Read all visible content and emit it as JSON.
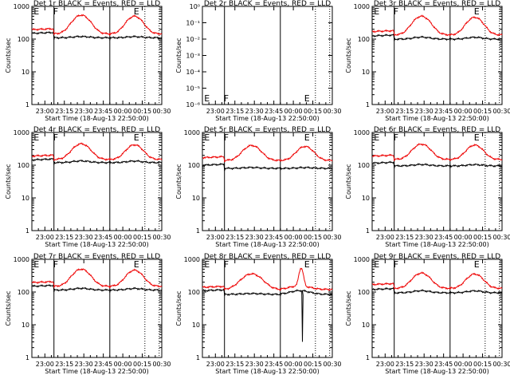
{
  "chart_data": [
    {
      "type": "line",
      "detector": "1r",
      "title": "Det 1r BLACK = Events, RED = LLD",
      "xlabel": "Start Time (18-Aug-13 22:50:00)",
      "ylabel": "Counts/sec",
      "xticks": [
        "23:00",
        "23:15",
        "23:30",
        "23:45",
        "00:00",
        "00:15",
        "00:30"
      ],
      "yticks": [
        "1",
        "10",
        "100",
        "1000"
      ],
      "ylim_log10": [
        0,
        3
      ],
      "markers": [
        {
          "label": "E",
          "x_min": 2
        },
        {
          "label": "F",
          "x_min": 17
        },
        {
          "label": "E",
          "x_min": 79
        }
      ],
      "series": [
        {
          "name": "Events",
          "color": "#000000",
          "profile": "standard",
          "base": 150,
          "low": 110,
          "peak": 120
        },
        {
          "name": "LLD",
          "color": "#ee0000",
          "profile": "standard",
          "base": 195,
          "low": 145,
          "peak": 540
        }
      ]
    },
    {
      "type": "line",
      "detector": "2r",
      "title": "Det 2r BLACK = Events, RED = LLD",
      "xlabel": "Start Time (18-Aug-13 22:50:00)",
      "ylabel": "Counts/sec",
      "xticks": [
        "23:00",
        "23:15",
        "23:30",
        "23:45",
        "00:00",
        "00:15",
        "00:30"
      ],
      "yticks": [
        "10⁻⁶",
        "10⁻⁵",
        "10⁻⁴",
        "10⁻³",
        "10⁻²",
        "10⁻¹",
        "10⁰"
      ],
      "ylim_log10": [
        -6,
        0
      ],
      "markers": [
        {
          "label": "E",
          "x_min": 2
        },
        {
          "label": "F",
          "x_min": 17
        },
        {
          "label": "E",
          "x_min": 79
        }
      ],
      "series": []
    },
    {
      "type": "line",
      "detector": "3r",
      "title": "Det 3r BLACK = Events, RED = LLD",
      "xlabel": "Start Time (18-Aug-13 22:50:00)",
      "ylabel": "Counts/sec",
      "xticks": [
        "23:00",
        "23:15",
        "23:30",
        "23:45",
        "00:00",
        "00:15",
        "00:30"
      ],
      "yticks": [
        "1",
        "10",
        "100",
        "1000"
      ],
      "ylim_log10": [
        0,
        3
      ],
      "markers": [
        {
          "label": "E",
          "x_min": 2
        },
        {
          "label": "F",
          "x_min": 17
        },
        {
          "label": "E",
          "x_min": 79
        }
      ],
      "series": [
        {
          "name": "Events",
          "color": "#000000",
          "profile": "standard",
          "base": 125,
          "low": 100,
          "peak": 115
        },
        {
          "name": "LLD",
          "color": "#ee0000",
          "profile": "standard",
          "base": 170,
          "low": 135,
          "peak": 500
        }
      ]
    },
    {
      "type": "line",
      "detector": "4r",
      "title": "Det 4r BLACK = Events, RED = LLD",
      "xlabel": "Start Time (18-Aug-13 22:50:00)",
      "ylabel": "Counts/sec",
      "xticks": [
        "23:00",
        "23:15",
        "23:30",
        "23:45",
        "00:00",
        "00:15",
        "00:30"
      ],
      "yticks": [
        "1",
        "10",
        "100",
        "1000"
      ],
      "ylim_log10": [
        0,
        3
      ],
      "markers": [
        {
          "label": "E",
          "x_min": 2
        },
        {
          "label": "F",
          "x_min": 17
        },
        {
          "label": "E",
          "x_min": 79
        }
      ],
      "series": [
        {
          "name": "Events",
          "color": "#000000",
          "profile": "standard",
          "base": 145,
          "low": 120,
          "peak": 135
        },
        {
          "name": "LLD",
          "color": "#ee0000",
          "profile": "standard",
          "base": 190,
          "low": 150,
          "peak": 450
        }
      ]
    },
    {
      "type": "line",
      "detector": "5r",
      "title": "Det 5r BLACK = Events, RED = LLD",
      "xlabel": "Start Time (18-Aug-13 22:50:00)",
      "ylabel": "Counts/sec",
      "xticks": [
        "23:00",
        "23:15",
        "23:30",
        "23:45",
        "00:00",
        "00:15",
        "00:30"
      ],
      "yticks": [
        "1",
        "10",
        "100",
        "1000"
      ],
      "ylim_log10": [
        0,
        3
      ],
      "markers": [
        {
          "label": "E",
          "x_min": 2
        },
        {
          "label": "F",
          "x_min": 17
        },
        {
          "label": "E",
          "x_min": 79
        }
      ],
      "series": [
        {
          "name": "Events",
          "color": "#000000",
          "profile": "standard",
          "base": 100,
          "low": 80,
          "peak": 85
        },
        {
          "name": "LLD",
          "color": "#ee0000",
          "profile": "standard",
          "base": 170,
          "low": 140,
          "peak": 400
        }
      ]
    },
    {
      "type": "line",
      "detector": "6r",
      "title": "Det 6r BLACK = Events, RED = LLD",
      "xlabel": "Start Time (18-Aug-13 22:50:00)",
      "ylabel": "Counts/sec",
      "xticks": [
        "23:00",
        "23:15",
        "23:30",
        "23:45",
        "00:00",
        "00:15",
        "00:30"
      ],
      "yticks": [
        "1",
        "10",
        "100",
        "1000"
      ],
      "ylim_log10": [
        0,
        3
      ],
      "markers": [
        {
          "label": "E",
          "x_min": 2
        },
        {
          "label": "F",
          "x_min": 17
        },
        {
          "label": "E",
          "x_min": 79
        }
      ],
      "series": [
        {
          "name": "Events",
          "color": "#000000",
          "profile": "standard",
          "base": 115,
          "low": 95,
          "peak": 105
        },
        {
          "name": "LLD",
          "color": "#ee0000",
          "profile": "standard",
          "base": 190,
          "low": 150,
          "peak": 440
        }
      ]
    },
    {
      "type": "line",
      "detector": "7r",
      "title": "Det 7r BLACK = Events, RED = LLD",
      "xlabel": "Start Time (18-Aug-13 22:50:00)",
      "ylabel": "Counts/sec",
      "xticks": [
        "23:00",
        "23:15",
        "23:30",
        "23:45",
        "00:00",
        "00:15",
        "00:30"
      ],
      "yticks": [
        "1",
        "10",
        "100",
        "1000"
      ],
      "ylim_log10": [
        0,
        3
      ],
      "markers": [
        {
          "label": "E",
          "x_min": 2
        },
        {
          "label": "F",
          "x_min": 17
        },
        {
          "label": "E",
          "x_min": 79
        }
      ],
      "series": [
        {
          "name": "Events",
          "color": "#000000",
          "profile": "standard",
          "base": 150,
          "low": 115,
          "peak": 130
        },
        {
          "name": "LLD",
          "color": "#ee0000",
          "profile": "standard",
          "base": 195,
          "low": 150,
          "peak": 500
        }
      ]
    },
    {
      "type": "line",
      "detector": "8r",
      "title": "Det 8r BLACK = Events, RED = LLD",
      "xlabel": "Start Time (18-Aug-13 22:50:00)",
      "ylabel": "Counts/sec",
      "xticks": [
        "23:00",
        "23:15",
        "23:30",
        "23:45",
        "00:00",
        "00:15",
        "00:30"
      ],
      "yticks": [
        "1",
        "10",
        "100",
        "1000"
      ],
      "ylim_log10": [
        0,
        3
      ],
      "markers": [
        {
          "label": "E",
          "x_min": 2
        },
        {
          "label": "F",
          "x_min": 17
        },
        {
          "label": "E",
          "x_min": 79
        }
      ],
      "series": [
        {
          "name": "Events",
          "color": "#000000",
          "profile": "det8",
          "base": 110,
          "low": 85,
          "peak": 90
        },
        {
          "name": "LLD",
          "color": "#ee0000",
          "profile": "det8",
          "base": 140,
          "low": 120,
          "peak": 360
        }
      ]
    },
    {
      "type": "line",
      "detector": "9r",
      "title": "Det 9r BLACK = Events, RED = LLD",
      "xlabel": "Start Time (18-Aug-13 22:50:00)",
      "ylabel": "Counts/sec",
      "xticks": [
        "23:00",
        "23:15",
        "23:30",
        "23:45",
        "00:00",
        "00:15",
        "00:30"
      ],
      "yticks": [
        "1",
        "10",
        "100",
        "1000"
      ],
      "ylim_log10": [
        0,
        3
      ],
      "markers": [
        {
          "label": "E",
          "x_min": 2
        },
        {
          "label": "F",
          "x_min": 17
        },
        {
          "label": "E",
          "x_min": 79
        }
      ],
      "series": [
        {
          "name": "Events",
          "color": "#000000",
          "profile": "standard",
          "base": 120,
          "low": 95,
          "peak": 110
        },
        {
          "name": "LLD",
          "color": "#ee0000",
          "profile": "standard",
          "base": 170,
          "low": 130,
          "peak": 380
        }
      ]
    }
  ]
}
